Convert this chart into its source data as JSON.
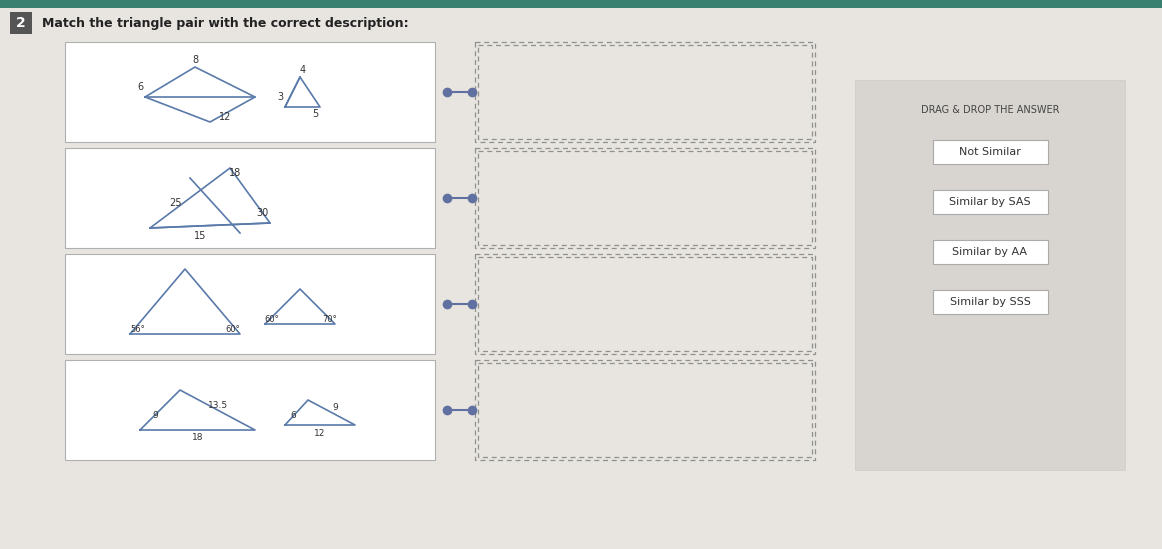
{
  "title": "Match the triangle pair with the correct description:",
  "question_number": "2",
  "bg_color": "#d4d0cc",
  "main_bg": "#e8e5e0",
  "header_bg": "#3a8070",
  "num_bg": "#555555",
  "row_bg": "#ffffff",
  "row_border": "#b0b0b0",
  "tri_color": "#5a7aaa",
  "answers": [
    "Not Similar",
    "Similar by SAS",
    "Similar by AA",
    "Similar by SSS"
  ],
  "drag_drop_text": "DRAG & DROP THE ANSWER",
  "dot_color": "#6070a0",
  "dashed_color": "#909090",
  "ans_panel_bg": "#d8d5d0",
  "btn_bg": "#ffffff",
  "btn_border": "#aaaaaa",
  "label_color": "#333333"
}
